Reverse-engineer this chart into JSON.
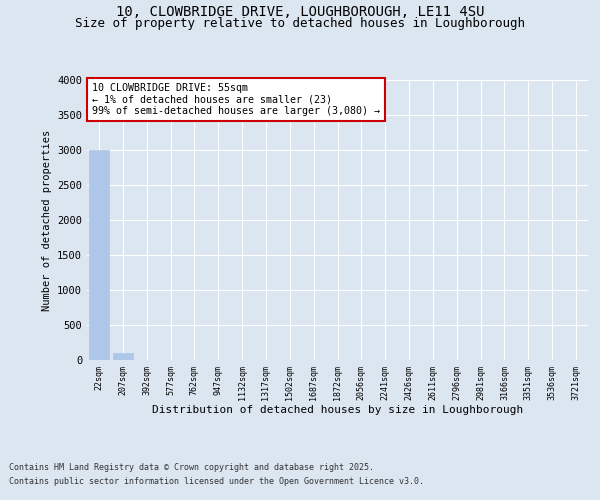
{
  "title1": "10, CLOWBRIDGE DRIVE, LOUGHBOROUGH, LE11 4SU",
  "title2": "Size of property relative to detached houses in Loughborough",
  "xlabel": "Distribution of detached houses by size in Loughborough",
  "ylabel": "Number of detached properties",
  "categories": [
    "22sqm",
    "207sqm",
    "392sqm",
    "577sqm",
    "762sqm",
    "947sqm",
    "1132sqm",
    "1317sqm",
    "1502sqm",
    "1687sqm",
    "1872sqm",
    "2056sqm",
    "2241sqm",
    "2426sqm",
    "2611sqm",
    "2796sqm",
    "2981sqm",
    "3166sqm",
    "3351sqm",
    "3536sqm",
    "3721sqm"
  ],
  "values": [
    3000,
    100,
    0,
    0,
    0,
    0,
    0,
    0,
    0,
    0,
    0,
    0,
    0,
    0,
    0,
    0,
    0,
    0,
    0,
    0,
    0
  ],
  "bar_color": "#aec6e8",
  "annotation_box_text": "10 CLOWBRIDGE DRIVE: 55sqm\n← 1% of detached houses are smaller (23)\n99% of semi-detached houses are larger (3,080) →",
  "annotation_box_color": "#cc0000",
  "ylim": [
    0,
    4000
  ],
  "yticks": [
    0,
    500,
    1000,
    1500,
    2000,
    2500,
    3000,
    3500,
    4000
  ],
  "background_color": "#dce6f1",
  "plot_bg_color": "#dce6f1",
  "grid_color": "#ffffff",
  "footer_line1": "Contains HM Land Registry data © Crown copyright and database right 2025.",
  "footer_line2": "Contains public sector information licensed under the Open Government Licence v3.0.",
  "title_fontsize": 10,
  "subtitle_fontsize": 9
}
